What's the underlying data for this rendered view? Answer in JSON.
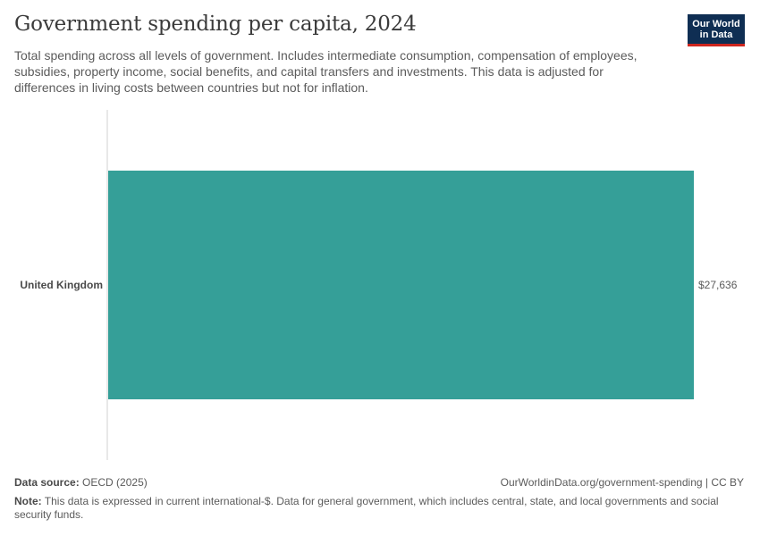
{
  "header": {
    "title": "Government spending per capita, 2024",
    "subtitle": "Total spending across all levels of government. Includes intermediate consumption, compensation of employees, subsidies, property income, social benefits, and capital transfers and investments. This data is adjusted for differences in living costs between countries but not for inflation.",
    "logo_line1": "Our World",
    "logo_line2": "in Data",
    "logo_color": "#0f2e53",
    "logo_accent": "#ce261e"
  },
  "chart_data": {
    "type": "bar",
    "orientation": "horizontal",
    "categories": [
      "United Kingdom"
    ],
    "values": [
      27636
    ],
    "value_labels": [
      "$27,636"
    ],
    "bar_color": "#359f98",
    "xlim": [
      0,
      27636
    ],
    "grid": false
  },
  "footer": {
    "source_label": "Data source:",
    "source_value": "OECD (2025)",
    "url": "OurWorldinData.org/government-spending | CC BY",
    "note_label": "Note:",
    "note_value": "This data is expressed in current international-$. Data for general government, which includes central, state, and local governments and social security funds."
  }
}
